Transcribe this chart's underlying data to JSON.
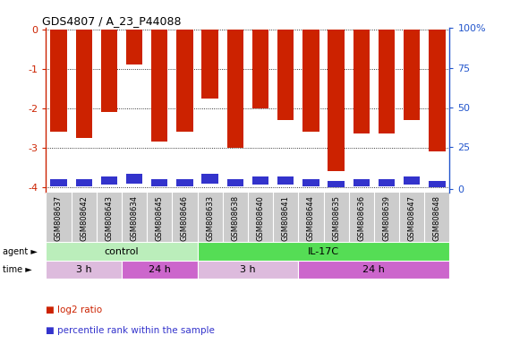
{
  "title": "GDS4807 / A_23_P44088",
  "samples": [
    "GSM808637",
    "GSM808642",
    "GSM808643",
    "GSM808634",
    "GSM808645",
    "GSM808646",
    "GSM808633",
    "GSM808638",
    "GSM808640",
    "GSM808641",
    "GSM808644",
    "GSM808635",
    "GSM808636",
    "GSM808639",
    "GSM808647",
    "GSM808648"
  ],
  "log2_ratio": [
    -2.6,
    -2.75,
    -2.1,
    -0.9,
    -2.85,
    -2.6,
    -1.75,
    -3.0,
    -2.0,
    -2.3,
    -2.6,
    -3.6,
    -2.65,
    -2.65,
    -2.3,
    -3.1
  ],
  "percentile_rank_scaled": [
    -3.98,
    -3.98,
    -3.95,
    -3.92,
    -3.98,
    -3.98,
    -3.92,
    -3.98,
    -3.95,
    -3.95,
    -3.98,
    -4.0,
    -3.98,
    -3.98,
    -3.95,
    -4.0
  ],
  "percentile_rank_height": [
    0.18,
    0.18,
    0.22,
    0.26,
    0.18,
    0.18,
    0.26,
    0.18,
    0.22,
    0.22,
    0.18,
    0.15,
    0.18,
    0.18,
    0.22,
    0.15
  ],
  "bar_color": "#cc2200",
  "blue_color": "#3333cc",
  "ylim_left": [
    -4.15,
    0.05
  ],
  "yticks_left": [
    0,
    -1,
    -2,
    -3,
    -4
  ],
  "ylim_right": [
    -4.15,
    0.05
  ],
  "yticks_right_pos": [
    0.05,
    -0.97,
    -1.98,
    -2.98,
    -4.05
  ],
  "yticks_right_labels": [
    "100%",
    "75",
    "50",
    "25",
    "0"
  ],
  "agent_groups": [
    {
      "label": "control",
      "start": 0,
      "end": 6,
      "color": "#bbeebb"
    },
    {
      "label": "IL-17C",
      "start": 6,
      "end": 16,
      "color": "#55dd55"
    }
  ],
  "time_groups": [
    {
      "label": "3 h",
      "start": 0,
      "end": 3,
      "color": "#ddbbdd"
    },
    {
      "label": "24 h",
      "start": 3,
      "end": 6,
      "color": "#cc66cc"
    },
    {
      "label": "3 h",
      "start": 6,
      "end": 10,
      "color": "#ddbbdd"
    },
    {
      "label": "24 h",
      "start": 10,
      "end": 16,
      "color": "#cc66cc"
    }
  ],
  "bar_color_legend": "#cc2200",
  "blue_color_legend": "#3333cc",
  "bg_color": "#ffffff",
  "left_tick_color": "#cc2200",
  "right_tick_color": "#2255cc",
  "grid_color": "#000000"
}
